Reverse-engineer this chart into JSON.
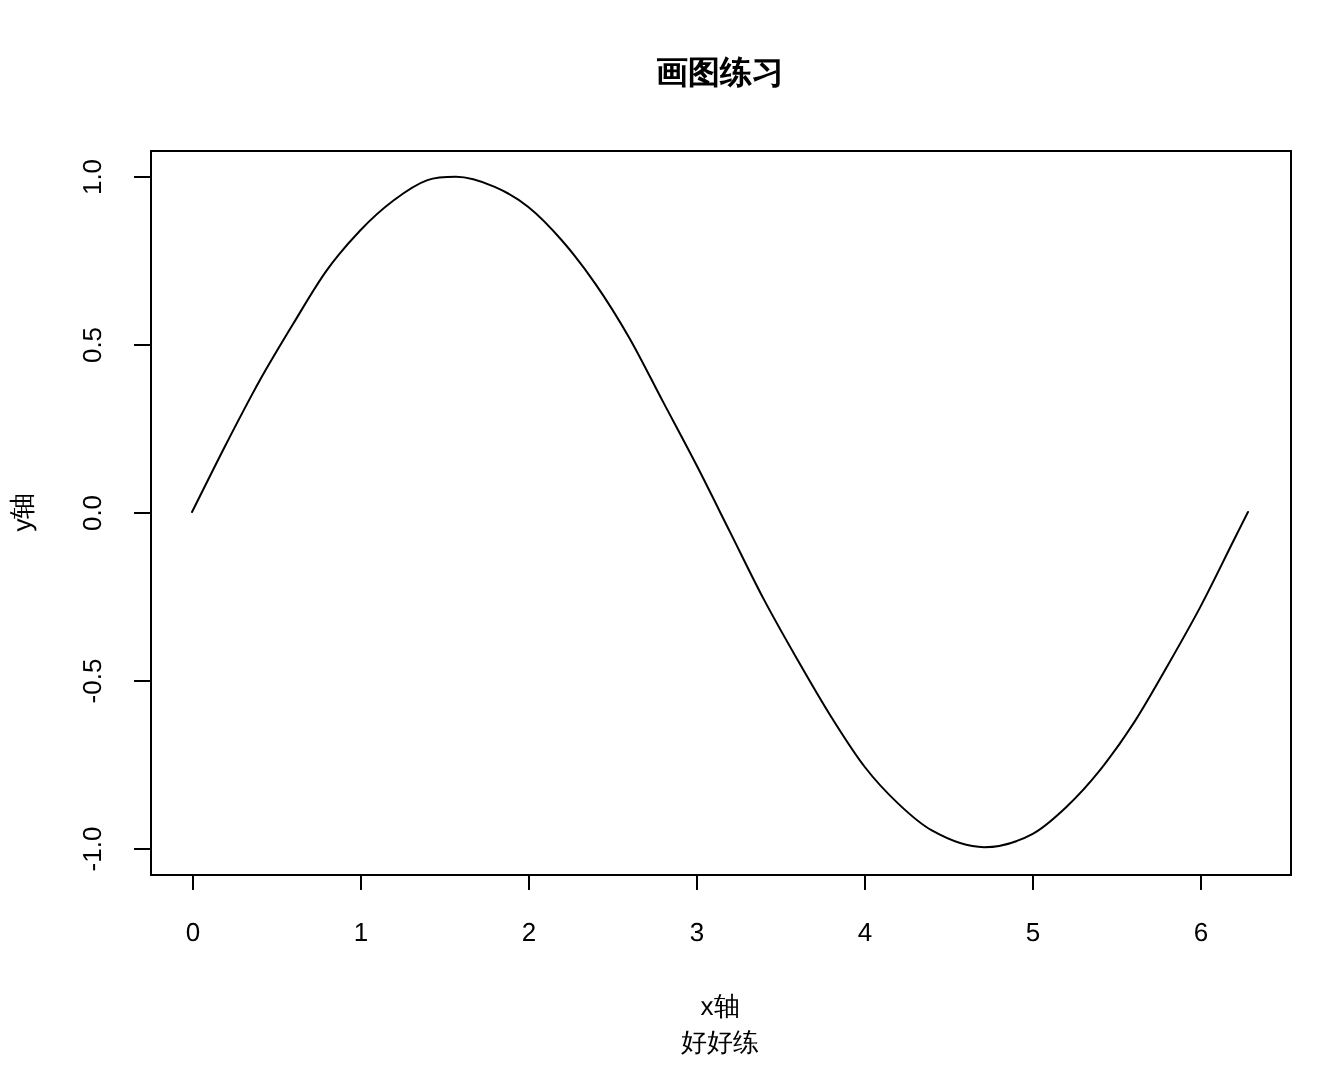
{
  "chart_data": {
    "type": "line",
    "title": "画图练习",
    "subtitle": "好好练",
    "xlabel": "x轴",
    "ylabel": "y轴",
    "x": [
      0,
      0.2,
      0.4,
      0.6,
      0.8,
      1.0,
      1.2,
      1.4,
      1.57,
      1.8,
      2.0,
      2.2,
      2.4,
      2.6,
      2.8,
      3.0,
      3.2,
      3.4,
      3.6,
      3.8,
      4.0,
      4.2,
      4.4,
      4.71,
      5.0,
      5.2,
      5.4,
      5.6,
      5.8,
      6.0,
      6.2,
      6.28
    ],
    "values": [
      0,
      0.2,
      0.39,
      0.56,
      0.72,
      0.84,
      0.93,
      0.99,
      1.0,
      0.97,
      0.91,
      0.81,
      0.68,
      0.52,
      0.33,
      0.14,
      -0.06,
      -0.26,
      -0.44,
      -0.61,
      -0.76,
      -0.87,
      -0.95,
      -1.0,
      -0.96,
      -0.88,
      -0.77,
      -0.63,
      -0.46,
      -0.28,
      -0.08,
      0.0
    ],
    "color": "#000000",
    "marker": "none",
    "line_style": "solid",
    "grid": false,
    "legend": false,
    "xlim": [
      -0.25,
      6.53
    ],
    "ylim": [
      -1.08,
      1.08
    ],
    "xticks": [
      0,
      1,
      2,
      3,
      4,
      5,
      6
    ],
    "yticks": [
      {
        "value": -1,
        "label": "-1.0"
      },
      {
        "value": -0.5,
        "label": "-0.5"
      },
      {
        "value": 0,
        "label": "0.0"
      },
      {
        "value": 0.5,
        "label": "0.5"
      },
      {
        "value": 1,
        "label": "1.0"
      }
    ]
  }
}
